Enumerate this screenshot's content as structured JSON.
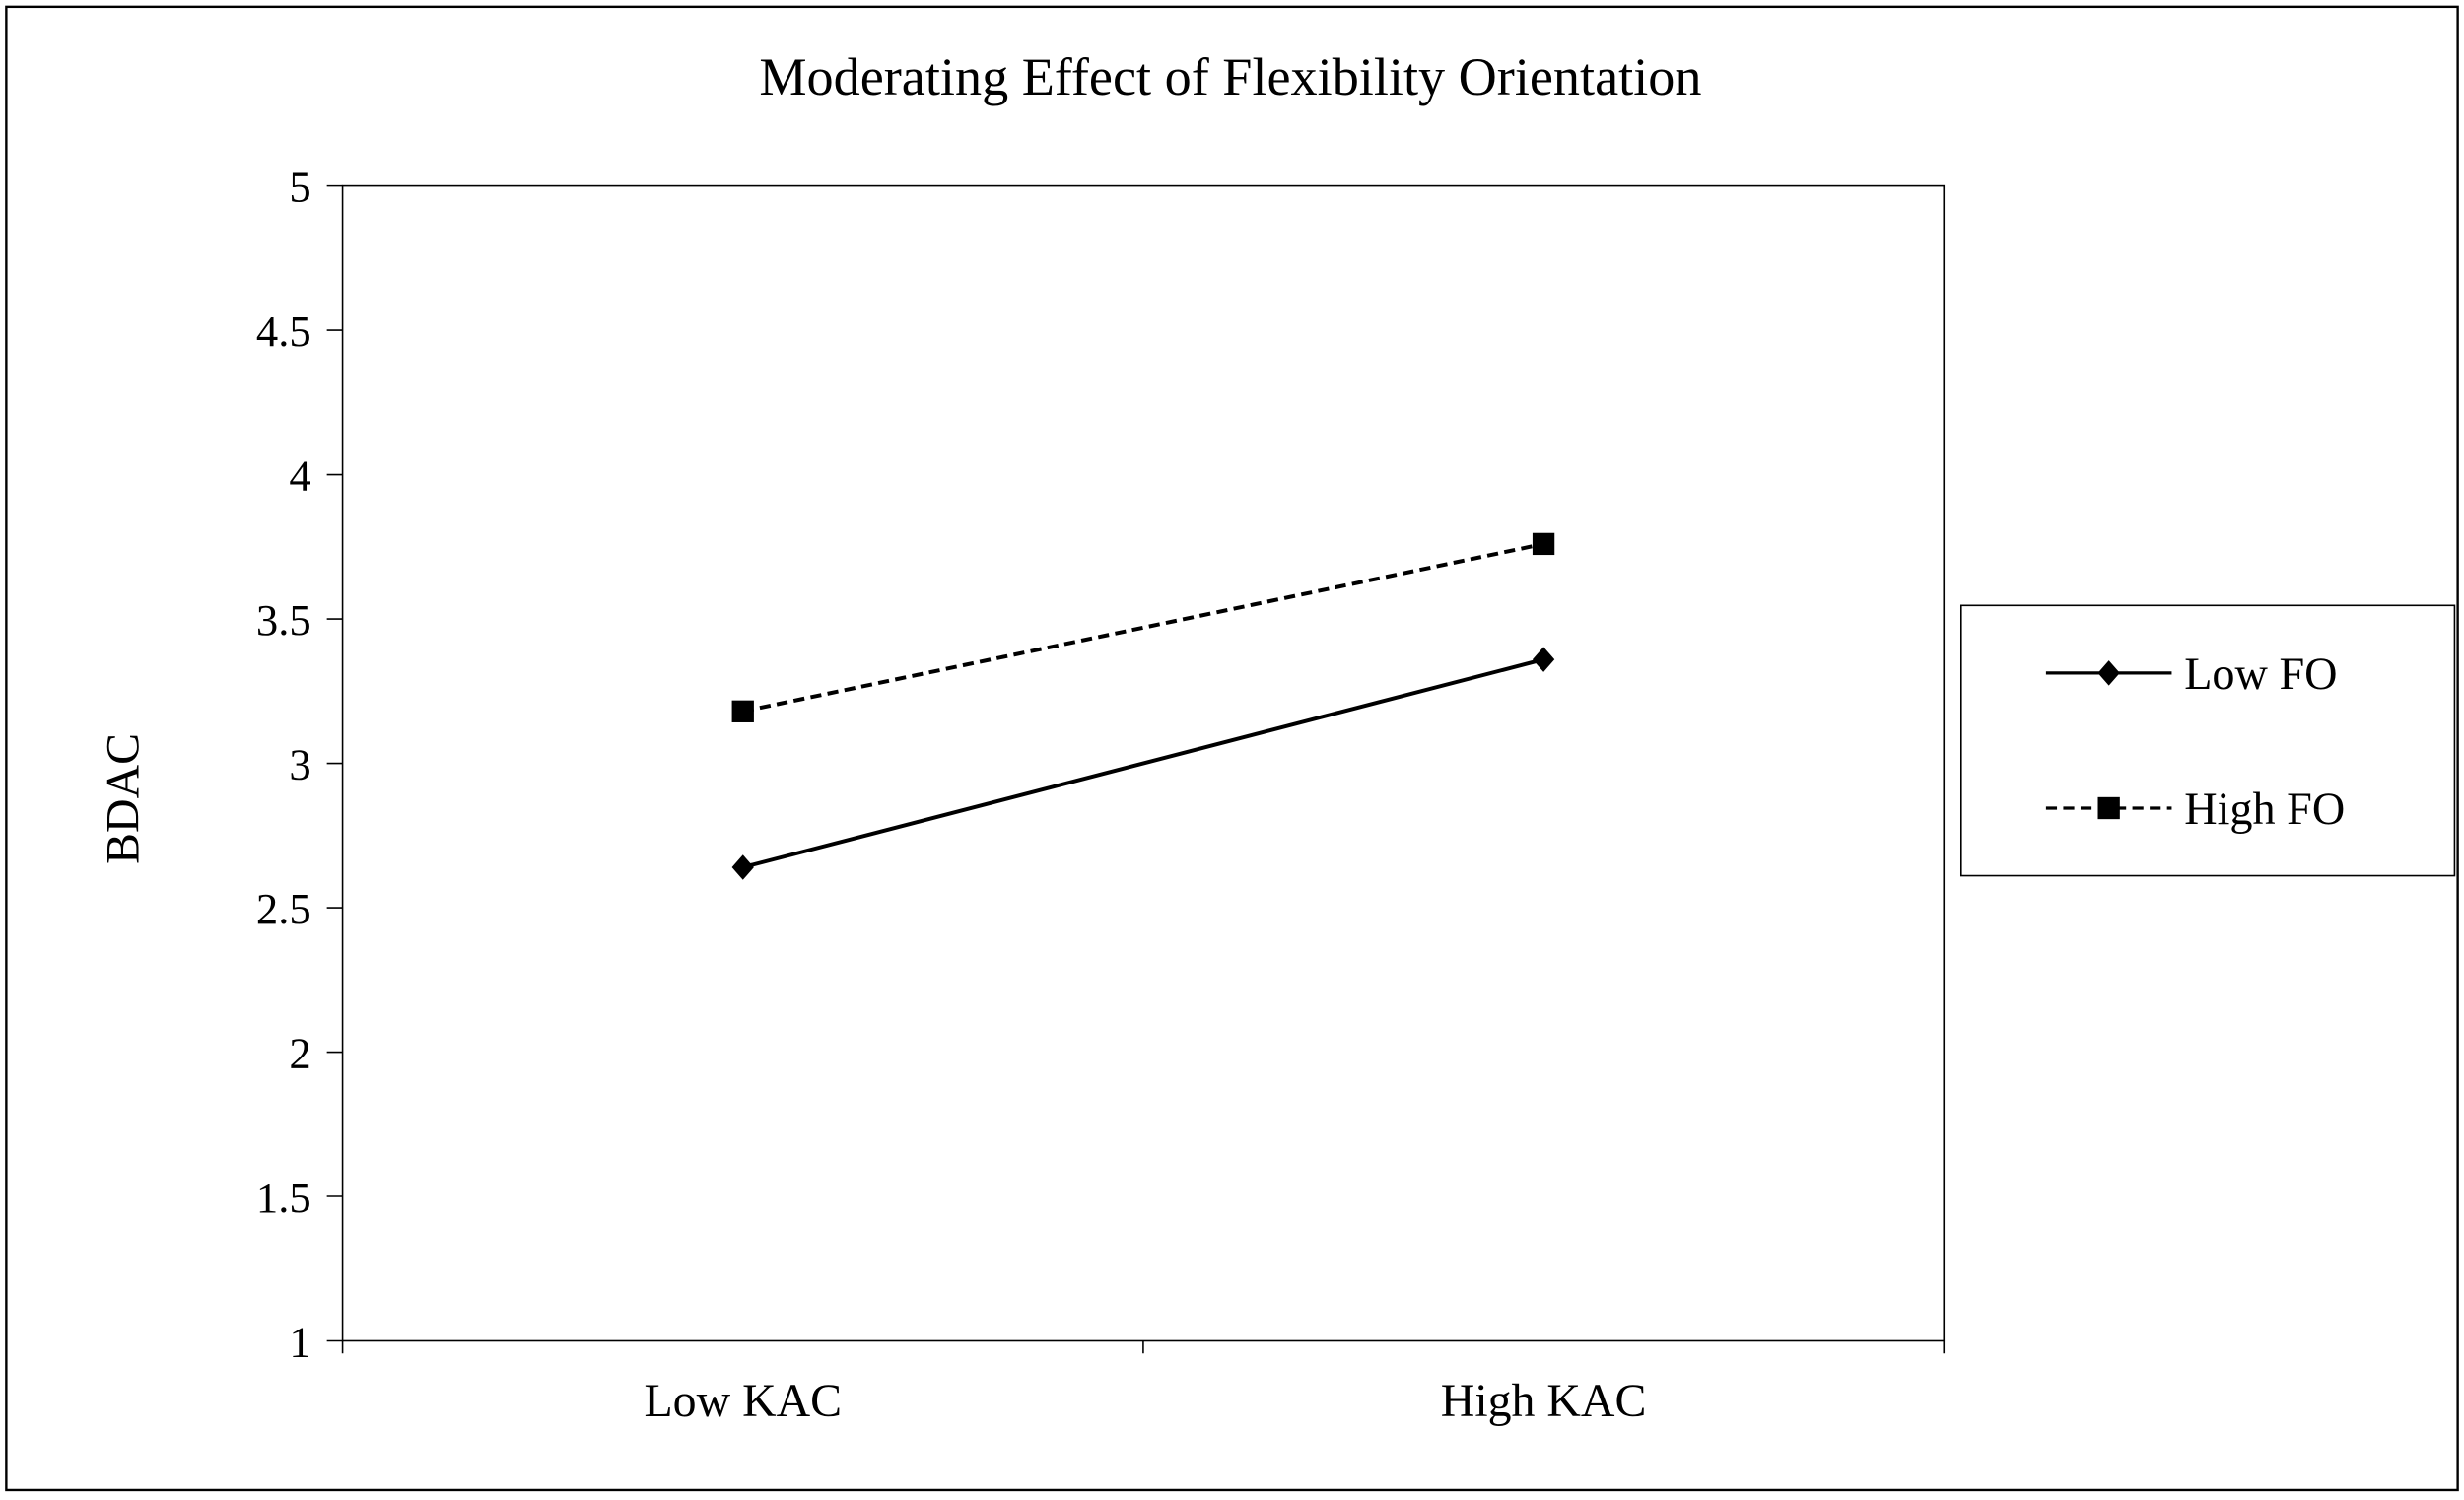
{
  "chart_data": {
    "type": "line",
    "title": "Moderating Effect of Flexibility Orientation",
    "xlabel": "",
    "ylabel": "BDAC",
    "categories": [
      "Low KAC",
      "High KAC"
    ],
    "ylim": [
      1,
      5
    ],
    "yticks": [
      "1",
      "1.5",
      "2",
      "2.5",
      "3",
      "3.5",
      "4",
      "4.5",
      "5"
    ],
    "grid": false,
    "legend_position": "right",
    "series": [
      {
        "name": "Low FO",
        "values": [
          2.64,
          3.36
        ],
        "marker": "diamond",
        "line": "solid",
        "color": "#000000"
      },
      {
        "name": "High FO",
        "values": [
          3.18,
          3.76
        ],
        "marker": "square",
        "line": "dashed",
        "color": "#000000"
      }
    ]
  }
}
